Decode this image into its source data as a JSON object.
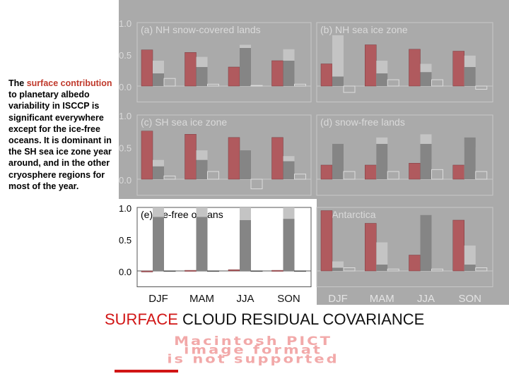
{
  "description": {
    "before": "The ",
    "highlight": "surface contribution",
    "after": " to planetary albedo variability in ISCCP is significant everywhere except for the ice-free oceans.  It is dominant in the SH sea ice zone year around, and in the other cryosphere regions for most of the year."
  },
  "caption": {
    "part1": "SURFACE",
    "part2": " CLOUD  RESIDUAL COVARIANCE"
  },
  "pict_message": [
    "Macintosh PICT",
    "image format",
    "is not supported"
  ],
  "chart_data": {
    "type": "bar",
    "categories": [
      "DJF",
      "MAM",
      "JJA",
      "SON"
    ],
    "series_colors": {
      "surface": "#b05a5e",
      "cloud": "#858585",
      "residual": "#c4c4c4",
      "covariance": "none"
    },
    "panel_background": "#aaaaaa",
    "highlight_background": "#ffffff",
    "ylim": [
      -0.25,
      1.0
    ],
    "yticks": [
      "1.0",
      "0.5",
      "0.0"
    ],
    "panels": [
      {
        "title": "(a) NH snow-covered lands",
        "highlight": false,
        "surface": [
          0.57,
          0.53,
          0.3,
          0.4
        ],
        "cloud": [
          0.2,
          0.3,
          0.6,
          0.4
        ],
        "residual": [
          0.4,
          0.46,
          0.65,
          0.58
        ],
        "covariance": [
          0.12,
          0.03,
          0.01,
          0.03
        ]
      },
      {
        "title": "(b) NH sea ice zone",
        "highlight": false,
        "surface": [
          0.35,
          0.65,
          0.58,
          0.55
        ],
        "cloud": [
          0.15,
          0.2,
          0.22,
          0.3
        ],
        "residual": [
          0.8,
          0.4,
          0.35,
          0.48
        ],
        "covariance": [
          -0.1,
          0.1,
          0.1,
          -0.05
        ]
      },
      {
        "title": "(c) SH sea ice zone",
        "highlight": false,
        "surface": [
          0.75,
          0.7,
          0.65,
          0.65
        ],
        "cloud": [
          0.2,
          0.3,
          0.45,
          0.28
        ],
        "residual": [
          0.3,
          0.45,
          0.2,
          0.36
        ],
        "covariance": [
          0.05,
          0.12,
          -0.15,
          0.08
        ]
      },
      {
        "title": "(d) snow-free lands",
        "highlight": false,
        "surface": [
          0.22,
          0.22,
          0.25,
          0.22
        ],
        "cloud": [
          0.55,
          0.55,
          0.55,
          0.65
        ],
        "residual": [
          0.35,
          0.65,
          0.7,
          0.5
        ],
        "covariance": [
          0.12,
          0.12,
          0.15,
          0.12
        ]
      },
      {
        "title": "(e) ice-free oceans",
        "highlight": true,
        "surface": [
          0.0,
          0.01,
          0.02,
          0.01
        ],
        "cloud": [
          0.85,
          0.85,
          0.8,
          0.82
        ],
        "residual": [
          1.0,
          1.0,
          1.0,
          1.0
        ],
        "covariance": [
          0.0,
          0.0,
          0.0,
          0.0
        ]
      },
      {
        "title": "(f) Antarctica",
        "highlight": false,
        "surface": [
          0.95,
          0.75,
          0.25,
          0.8
        ],
        "cloud": [
          0.05,
          0.1,
          0.88,
          0.1
        ],
        "residual": [
          0.15,
          0.45,
          0.6,
          0.4
        ],
        "covariance": [
          0.05,
          0.03,
          0.03,
          0.05
        ]
      }
    ]
  }
}
